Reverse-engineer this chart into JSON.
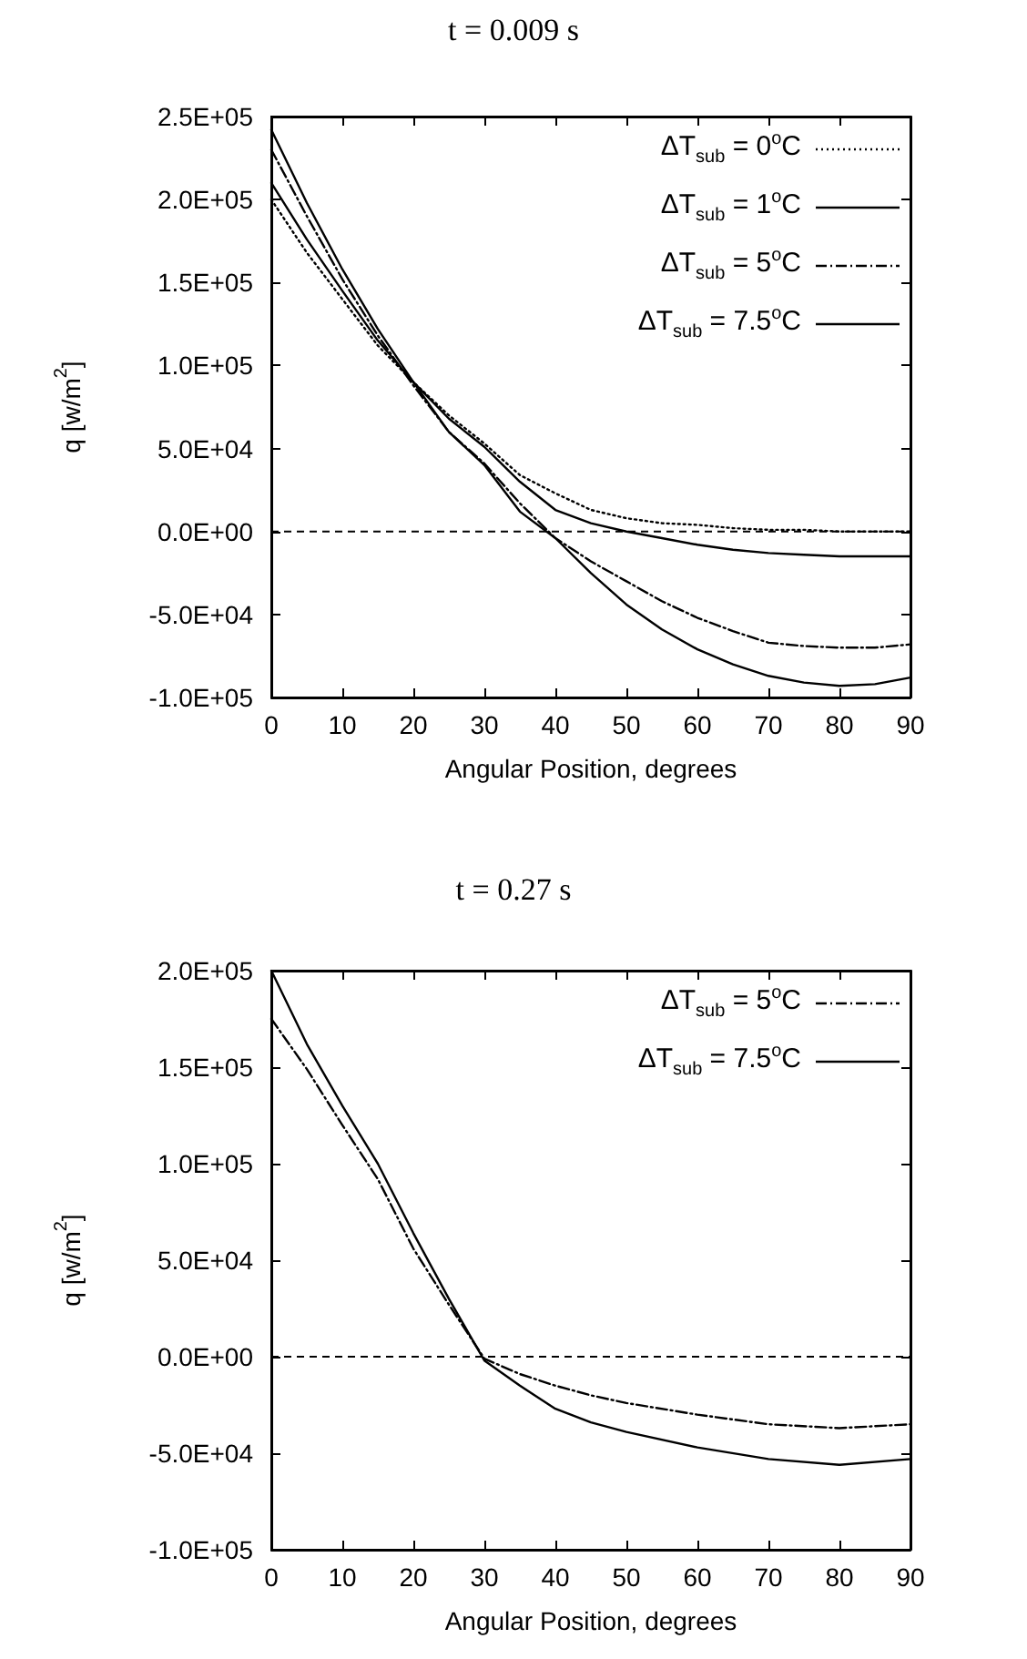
{
  "chart_data": [
    {
      "type": "line",
      "title": "t = 0.009 s",
      "xlabel": "Angular Position, degrees",
      "ylabel": "q [w/m$^{2}$]",
      "x": [
        0,
        5,
        10,
        15,
        20,
        25,
        30,
        35,
        40,
        45,
        50,
        55,
        60,
        65,
        70,
        75,
        80,
        85,
        90
      ],
      "series": [
        {
          "name": "ΔT$_{sub}$ = 0$^{o}$C",
          "color": "#000000",
          "line_style": "dotted",
          "values": [
            200000,
            168000,
            140000,
            112000,
            90000,
            70000,
            53000,
            34000,
            23000,
            13000,
            8000,
            5000,
            4000,
            2000,
            1000,
            1000,
            0,
            0,
            0
          ]
        },
        {
          "name": "ΔT$_{sub}$ = 1$^{o}$C",
          "color": "#000000",
          "line_style": "solid",
          "values": [
            210000,
            176000,
            145000,
            115000,
            90000,
            68000,
            51000,
            30000,
            13000,
            5000,
            0,
            -4000,
            -8000,
            -11000,
            -13000,
            -14000,
            -15000,
            -15000,
            -15000
          ]
        },
        {
          "name": "ΔT$_{sub}$ = 5$^{o}$C",
          "color": "#000000",
          "line_style": "dashdot",
          "values": [
            230000,
            190000,
            152000,
            118000,
            88000,
            60000,
            41000,
            17000,
            -4000,
            -18000,
            -30000,
            -42000,
            -52000,
            -60000,
            -67000,
            -69000,
            -70000,
            -70000,
            -68000
          ]
        },
        {
          "name": "ΔT$_{sub}$ = 7.5$^{o}$C",
          "color": "#000000",
          "line_style": "solid",
          "values": [
            242000,
            198000,
            158000,
            122000,
            90000,
            60000,
            40000,
            12000,
            -4000,
            -25000,
            -44000,
            -59000,
            -71000,
            -80000,
            -87000,
            -91000,
            -93000,
            -92000,
            -88000
          ]
        }
      ],
      "xlim": [
        0,
        90
      ],
      "xticks": [
        0,
        10,
        20,
        30,
        40,
        50,
        60,
        70,
        80,
        90
      ],
      "ylim": [
        -100000,
        250000
      ],
      "yticks": [
        {
          "value": -100000,
          "label": "-1.0E+05"
        },
        {
          "value": -50000,
          "label": "-5.0E+04"
        },
        {
          "value": 0,
          "label": "0.0E+00"
        },
        {
          "value": 50000,
          "label": "5.0E+04"
        },
        {
          "value": 100000,
          "label": "1.0E+05"
        },
        {
          "value": 150000,
          "label": "1.5E+05"
        },
        {
          "value": 200000,
          "label": "2.0E+05"
        },
        {
          "value": 250000,
          "label": "2.5E+05"
        }
      ],
      "ref_lines": [
        {
          "axis": "y",
          "value": 0,
          "line_style": "dashed",
          "color": "#000000"
        }
      ],
      "grid": false,
      "legend": "top right",
      "marker": "none"
    },
    {
      "type": "line",
      "title": "t = 0.27 s",
      "xlabel": "Angular Position, degrees",
      "ylabel": "q [w/m$^{2}$]",
      "x": [
        0,
        5,
        10,
        15,
        20,
        25,
        30,
        35,
        40,
        45,
        50,
        60,
        70,
        80,
        90
      ],
      "series": [
        {
          "name": "ΔT$_{sub}$ = 5$^{o}$C",
          "color": "#000000",
          "line_style": "dashdot",
          "values": [
            175000,
            149000,
            120000,
            92000,
            56000,
            27000,
            -1000,
            -9000,
            -15000,
            -20000,
            -24000,
            -30000,
            -35000,
            -37000,
            -35000
          ]
        },
        {
          "name": "ΔT$_{sub}$ = 7.5$^{o}$C",
          "color": "#000000",
          "line_style": "solid",
          "values": [
            200000,
            162000,
            130000,
            100000,
            64000,
            30000,
            -2000,
            -15000,
            -27000,
            -34000,
            -39000,
            -47000,
            -53000,
            -56000,
            -53000
          ]
        }
      ],
      "xlim": [
        0,
        90
      ],
      "xticks": [
        0,
        10,
        20,
        30,
        40,
        50,
        60,
        70,
        80,
        90
      ],
      "ylim": [
        -100000,
        200000
      ],
      "yticks": [
        {
          "value": -100000,
          "label": "-1.0E+05"
        },
        {
          "value": -50000,
          "label": "-5.0E+04"
        },
        {
          "value": 0,
          "label": "0.0E+00"
        },
        {
          "value": 50000,
          "label": "5.0E+04"
        },
        {
          "value": 100000,
          "label": "1.0E+05"
        },
        {
          "value": 150000,
          "label": "1.5E+05"
        },
        {
          "value": 200000,
          "label": "2.0E+05"
        }
      ],
      "ref_lines": [
        {
          "axis": "y",
          "value": 0,
          "line_style": "dashed",
          "color": "#000000"
        }
      ],
      "grid": false,
      "legend": "top right",
      "marker": "none"
    }
  ]
}
